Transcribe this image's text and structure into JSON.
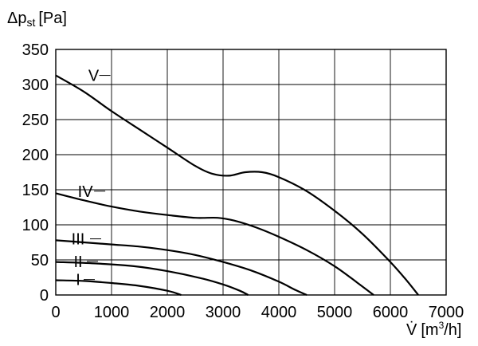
{
  "chart_data": {
    "type": "line",
    "ylabel": {
      "main": "Δp",
      "sub": "st",
      "unit": "[Pa]"
    },
    "xlabel": {
      "main": "V̇",
      "unit_pre": "[m",
      "unit_sup": "3",
      "unit_post": "/h]"
    },
    "xlim": [
      0,
      7000
    ],
    "ylim": [
      0,
      350
    ],
    "x_ticks": [
      0,
      1000,
      2000,
      3000,
      4000,
      5000,
      6000,
      7000
    ],
    "y_ticks": [
      0,
      50,
      100,
      150,
      200,
      250,
      300,
      350
    ],
    "grid": true,
    "series": [
      {
        "name": "I",
        "points": [
          [
            0,
            21
          ],
          [
            500,
            20
          ],
          [
            1000,
            17
          ],
          [
            1500,
            13
          ],
          [
            2000,
            6
          ],
          [
            2250,
            0
          ]
        ]
      },
      {
        "name": "II",
        "points": [
          [
            0,
            47
          ],
          [
            700,
            45
          ],
          [
            1400,
            41
          ],
          [
            2000,
            34
          ],
          [
            2600,
            24
          ],
          [
            3000,
            15
          ],
          [
            3300,
            6
          ],
          [
            3450,
            0
          ]
        ]
      },
      {
        "name": "III",
        "points": [
          [
            0,
            78
          ],
          [
            500,
            75
          ],
          [
            1000,
            72
          ],
          [
            1500,
            69
          ],
          [
            2000,
            64
          ],
          [
            2500,
            57
          ],
          [
            3000,
            47
          ],
          [
            3500,
            35
          ],
          [
            4000,
            19
          ],
          [
            4300,
            7
          ],
          [
            4500,
            0
          ]
        ]
      },
      {
        "name": "IV",
        "points": [
          [
            0,
            145
          ],
          [
            500,
            135
          ],
          [
            1000,
            126
          ],
          [
            1500,
            119
          ],
          [
            2000,
            114
          ],
          [
            2500,
            110
          ],
          [
            2900,
            110
          ],
          [
            3200,
            106
          ],
          [
            3600,
            96
          ],
          [
            4000,
            83
          ],
          [
            4500,
            64
          ],
          [
            5000,
            41
          ],
          [
            5400,
            18
          ],
          [
            5700,
            0
          ]
        ]
      },
      {
        "name": "V",
        "points": [
          [
            0,
            313
          ],
          [
            500,
            290
          ],
          [
            1000,
            262
          ],
          [
            1500,
            236
          ],
          [
            2000,
            210
          ],
          [
            2500,
            184
          ],
          [
            2800,
            173
          ],
          [
            3100,
            170
          ],
          [
            3400,
            175
          ],
          [
            3700,
            175
          ],
          [
            4000,
            168
          ],
          [
            4500,
            148
          ],
          [
            5000,
            120
          ],
          [
            5500,
            87
          ],
          [
            6000,
            47
          ],
          [
            6300,
            20
          ],
          [
            6500,
            0
          ]
        ]
      }
    ],
    "curve_labels": [
      {
        "text": "I",
        "x": 400,
        "y": 22
      },
      {
        "text": "II",
        "x": 400,
        "y": 48
      },
      {
        "text": "III",
        "x": 400,
        "y": 80
      },
      {
        "text": "IV",
        "x": 530,
        "y": 148
      },
      {
        "text": "V",
        "x": 680,
        "y": 313
      }
    ]
  }
}
